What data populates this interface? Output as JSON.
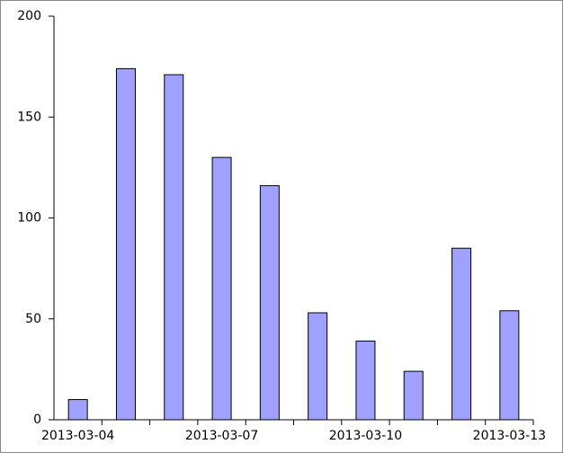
{
  "chart_data": {
    "type": "bar",
    "categories": [
      "2013-03-04",
      null,
      null,
      "2013-03-07",
      null,
      null,
      "2013-03-10",
      null,
      null,
      "2013-03-13"
    ],
    "values": [
      10,
      174,
      171,
      130,
      116,
      53,
      39,
      24,
      85,
      54
    ],
    "color": "#a0a0ff",
    "ylim": [
      0,
      200
    ],
    "yticks": [
      0,
      50,
      100,
      150,
      200
    ],
    "grid": false
  }
}
